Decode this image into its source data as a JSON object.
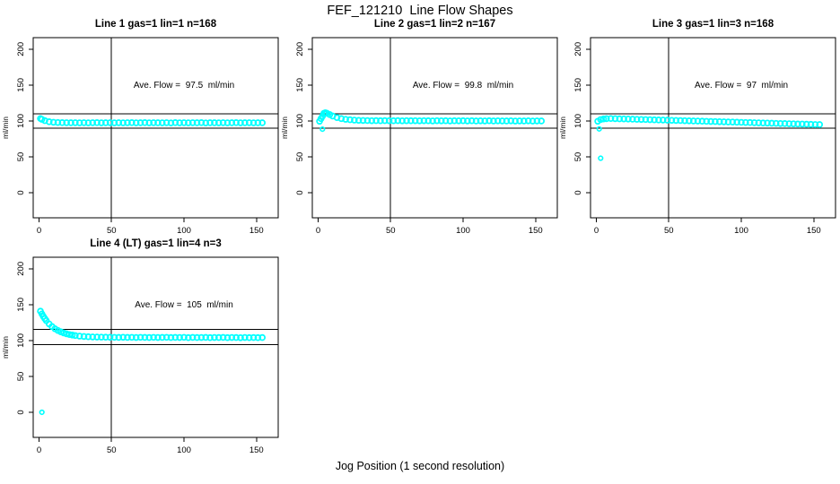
{
  "page": {
    "main_title": "FEF_121210  Line Flow Shapes",
    "x_axis_label": "Jog Position (1 second resolution)",
    "background_color": "#ffffff",
    "marker_color": "#00ffff",
    "axis_color": "#000000"
  },
  "chart_data": [
    {
      "type": "scatter",
      "title": "Line 1 gas=1 lin=1 n=168",
      "annotation": "Ave. Flow =  97.5  ml/min",
      "ave_flow_ml_min": 97.5,
      "n": 168,
      "ylabel": "ml/min",
      "x_ticks": [
        0,
        50,
        100,
        150
      ],
      "y_ticks": [
        0,
        50,
        100,
        150,
        200
      ],
      "x_domain": [
        -4,
        165
      ],
      "y_domain": [
        -35,
        216
      ],
      "vline_x": 50,
      "hlines": [
        110,
        90
      ],
      "annotation_xy": [
        100,
        150
      ],
      "points": [
        [
          1,
          103.3
        ],
        [
          2,
          102.2
        ],
        [
          4,
          100.4
        ],
        [
          7,
          98.8
        ],
        [
          10,
          98.1
        ],
        [
          13,
          97.8
        ],
        [
          16,
          97.6
        ],
        [
          19,
          97.5
        ],
        [
          22,
          97.4
        ],
        [
          25,
          97.5
        ],
        [
          28,
          97.3
        ],
        [
          31,
          97.5
        ],
        [
          34,
          97.3
        ],
        [
          37,
          97.5
        ],
        [
          40,
          97.6
        ],
        [
          43,
          97.3
        ],
        [
          46,
          97.4
        ],
        [
          49,
          97.5
        ],
        [
          52,
          97.3
        ],
        [
          55,
          97.5
        ],
        [
          58,
          97.3
        ],
        [
          61,
          97.5
        ],
        [
          64,
          97.6
        ],
        [
          67,
          97.3
        ],
        [
          70,
          97.4
        ],
        [
          73,
          97.6
        ],
        [
          76,
          97.3
        ],
        [
          79,
          97.5
        ],
        [
          82,
          97.4
        ],
        [
          85,
          97.3
        ],
        [
          88,
          97.5
        ],
        [
          91,
          97.2
        ],
        [
          94,
          97.6
        ],
        [
          97,
          97.3
        ],
        [
          100,
          97.5
        ],
        [
          103,
          97.3
        ],
        [
          106,
          97.5
        ],
        [
          109,
          97.4
        ],
        [
          112,
          97.6
        ],
        [
          115,
          97.2
        ],
        [
          118,
          97.4
        ],
        [
          121,
          97.4
        ],
        [
          124,
          97.3
        ],
        [
          127,
          97.5
        ],
        [
          130,
          97.3
        ],
        [
          133,
          97.4
        ],
        [
          136,
          97.6
        ],
        [
          139,
          97.3
        ],
        [
          142,
          97.4
        ],
        [
          145,
          97.5
        ],
        [
          148,
          97.3
        ],
        [
          151,
          97.4
        ],
        [
          154,
          97.4
        ]
      ],
      "outliers": []
    },
    {
      "type": "scatter",
      "title": "Line 2 gas=1 lin=2 n=167",
      "annotation": "Ave. Flow =  99.8  ml/min",
      "ave_flow_ml_min": 99.8,
      "n": 167,
      "ylabel": "ml/min",
      "x_ticks": [
        0,
        50,
        100,
        150
      ],
      "y_ticks": [
        0,
        50,
        100,
        150,
        200
      ],
      "x_domain": [
        -4,
        165
      ],
      "y_domain": [
        -35,
        216
      ],
      "vline_x": 50,
      "hlines": [
        110,
        90
      ],
      "annotation_xy": [
        100,
        150
      ],
      "points": [
        [
          1,
          99.5
        ],
        [
          2,
          103.2
        ],
        [
          3,
          106.5
        ],
        [
          4,
          110.6
        ],
        [
          5,
          111.4
        ],
        [
          6,
          110.7
        ],
        [
          8,
          108.8
        ],
        [
          10,
          106.8
        ],
        [
          13,
          104.6
        ],
        [
          16,
          103.2
        ],
        [
          19,
          102.2
        ],
        [
          22,
          101.6
        ],
        [
          25,
          101.1
        ],
        [
          28,
          100.8
        ],
        [
          31,
          100.6
        ],
        [
          34,
          100.5
        ],
        [
          37,
          100.3
        ],
        [
          40,
          100.4
        ],
        [
          43,
          100.2
        ],
        [
          46,
          100.4
        ],
        [
          49,
          100.3
        ],
        [
          52,
          100.2
        ],
        [
          55,
          100.4
        ],
        [
          58,
          100.1
        ],
        [
          61,
          100.3
        ],
        [
          64,
          100.2
        ],
        [
          67,
          100.3
        ],
        [
          70,
          100.1
        ],
        [
          73,
          100.3
        ],
        [
          76,
          100.2
        ],
        [
          79,
          100.0
        ],
        [
          82,
          100.3
        ],
        [
          85,
          100.1
        ],
        [
          88,
          100.2
        ],
        [
          91,
          100.0
        ],
        [
          94,
          100.2
        ],
        [
          97,
          100.1
        ],
        [
          100,
          100.2
        ],
        [
          103,
          100.0
        ],
        [
          106,
          100.2
        ],
        [
          109,
          99.9
        ],
        [
          112,
          100.1
        ],
        [
          115,
          100.0
        ],
        [
          118,
          100.2
        ],
        [
          121,
          99.9
        ],
        [
          124,
          100.1
        ],
        [
          127,
          100.0
        ],
        [
          130,
          99.9
        ],
        [
          133,
          100.1
        ],
        [
          136,
          99.8
        ],
        [
          139,
          100.0
        ],
        [
          142,
          99.9
        ],
        [
          145,
          100.1
        ],
        [
          148,
          99.8
        ],
        [
          151,
          100.0
        ],
        [
          154,
          99.9
        ]
      ],
      "outliers": [
        [
          3,
          88.5
        ]
      ]
    },
    {
      "type": "scatter",
      "title": "Line 3 gas=1 lin=3 n=168",
      "annotation": "Ave. Flow =  97  ml/min",
      "ave_flow_ml_min": 97,
      "n": 168,
      "ylabel": "ml/min",
      "x_ticks": [
        0,
        50,
        100,
        150
      ],
      "y_ticks": [
        0,
        50,
        100,
        150,
        200
      ],
      "x_domain": [
        -4,
        165
      ],
      "y_domain": [
        -35,
        216
      ],
      "vline_x": 50,
      "hlines": [
        110,
        90
      ],
      "annotation_xy": [
        100,
        150
      ],
      "points": [
        [
          1,
          99.5
        ],
        [
          3,
          101.9
        ],
        [
          5,
          102.7
        ],
        [
          7,
          103.1
        ],
        [
          10,
          103.3
        ],
        [
          13,
          103.1
        ],
        [
          16,
          102.9
        ],
        [
          19,
          102.8
        ],
        [
          22,
          102.6
        ],
        [
          25,
          102.4
        ],
        [
          28,
          102.2
        ],
        [
          31,
          102.0
        ],
        [
          34,
          101.9
        ],
        [
          37,
          101.7
        ],
        [
          40,
          101.5
        ],
        [
          43,
          101.3
        ],
        [
          46,
          101.2
        ],
        [
          49,
          101.0
        ],
        [
          52,
          100.8
        ],
        [
          55,
          100.6
        ],
        [
          58,
          100.5
        ],
        [
          61,
          100.3
        ],
        [
          64,
          100.1
        ],
        [
          67,
          99.9
        ],
        [
          70,
          99.8
        ],
        [
          73,
          99.6
        ],
        [
          76,
          99.4
        ],
        [
          79,
          99.2
        ],
        [
          82,
          99.1
        ],
        [
          85,
          98.9
        ],
        [
          88,
          98.7
        ],
        [
          91,
          98.5
        ],
        [
          94,
          98.4
        ],
        [
          97,
          98.2
        ],
        [
          100,
          98.0
        ],
        [
          103,
          97.8
        ],
        [
          106,
          97.7
        ],
        [
          109,
          97.5
        ],
        [
          112,
          97.3
        ],
        [
          115,
          97.1
        ],
        [
          118,
          97.0
        ],
        [
          121,
          96.8
        ],
        [
          124,
          96.6
        ],
        [
          127,
          96.4
        ],
        [
          130,
          96.3
        ],
        [
          133,
          96.1
        ],
        [
          136,
          95.9
        ],
        [
          139,
          95.7
        ],
        [
          142,
          95.6
        ],
        [
          145,
          95.4
        ],
        [
          148,
          95.2
        ],
        [
          151,
          95.0
        ],
        [
          154,
          94.9
        ]
      ],
      "outliers": [
        [
          2,
          88.8
        ],
        [
          3,
          48
        ]
      ]
    },
    {
      "type": "scatter",
      "title": "Line 4 (LT) gas=1 lin=4 n=3",
      "annotation": "Ave. Flow =  105  ml/min",
      "ave_flow_ml_min": 105,
      "n": 3,
      "ylabel": "ml/min",
      "x_ticks": [
        0,
        50,
        100,
        150
      ],
      "y_ticks": [
        0,
        50,
        100,
        150,
        200
      ],
      "x_domain": [
        -4,
        165
      ],
      "y_domain": [
        -35,
        216
      ],
      "vline_x": 50,
      "hlines": [
        115.5,
        94.5
      ],
      "annotation_xy": [
        100,
        150
      ],
      "points": [
        [
          1,
          140.8
        ],
        [
          2,
          137.0
        ],
        [
          3,
          133.5
        ],
        [
          4,
          130.5
        ],
        [
          5,
          127.8
        ],
        [
          7,
          123.1
        ],
        [
          9,
          119.4
        ],
        [
          11,
          116.4
        ],
        [
          13,
          114.0
        ],
        [
          15,
          112.1
        ],
        [
          17,
          110.6
        ],
        [
          19,
          109.3
        ],
        [
          21,
          108.3
        ],
        [
          23,
          107.6
        ],
        [
          25,
          106.9
        ],
        [
          28,
          106.1
        ],
        [
          31,
          105.6
        ],
        [
          34,
          105.2
        ],
        [
          37,
          105.0
        ],
        [
          40,
          104.8
        ],
        [
          43,
          104.7
        ],
        [
          46,
          104.6
        ],
        [
          49,
          104.5
        ],
        [
          52,
          104.4
        ],
        [
          55,
          104.3
        ],
        [
          58,
          104.5
        ],
        [
          61,
          104.3
        ],
        [
          64,
          104.4
        ],
        [
          67,
          104.2
        ],
        [
          70,
          104.4
        ],
        [
          73,
          104.3
        ],
        [
          76,
          104.1
        ],
        [
          79,
          104.4
        ],
        [
          82,
          104.2
        ],
        [
          85,
          104.3
        ],
        [
          88,
          104.4
        ],
        [
          91,
          104.1
        ],
        [
          94,
          104.3
        ],
        [
          97,
          104.2
        ],
        [
          100,
          104.4
        ],
        [
          103,
          104.0
        ],
        [
          106,
          104.3
        ],
        [
          109,
          104.1
        ],
        [
          112,
          104.2
        ],
        [
          115,
          104.3
        ],
        [
          118,
          104.0
        ],
        [
          121,
          104.2
        ],
        [
          124,
          104.1
        ],
        [
          127,
          104.3
        ],
        [
          130,
          104.0
        ],
        [
          133,
          104.2
        ],
        [
          136,
          104.1
        ],
        [
          139,
          103.9
        ],
        [
          142,
          104.2
        ],
        [
          145,
          104.0
        ],
        [
          148,
          104.1
        ],
        [
          151,
          104.0
        ],
        [
          154,
          104.1
        ]
      ],
      "outliers": [
        [
          2,
          0
        ]
      ]
    }
  ]
}
